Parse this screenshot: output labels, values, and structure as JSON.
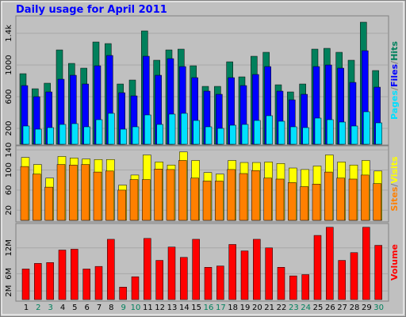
{
  "title": "Daily usage for April 2011",
  "chart_data": [
    {
      "type": "bar",
      "series": [
        {
          "name": "Hits",
          "color": "#00805c",
          "values": [
            890,
            700,
            770,
            1190,
            1020,
            960,
            1290,
            1270,
            760,
            810,
            1430,
            1060,
            1190,
            1200,
            990,
            730,
            730,
            1040,
            850,
            1110,
            1160,
            750,
            660,
            760,
            1200,
            1210,
            1160,
            1060,
            1540,
            930
          ]
        },
        {
          "name": "Files",
          "color": "#0000ff",
          "values": [
            740,
            600,
            660,
            820,
            870,
            760,
            990,
            1120,
            650,
            610,
            1110,
            870,
            1080,
            980,
            840,
            670,
            630,
            840,
            740,
            880,
            980,
            670,
            560,
            630,
            980,
            1000,
            960,
            780,
            1180,
            720
          ]
        },
        {
          "name": "Pages",
          "color": "#00e0ff",
          "values": [
            230,
            190,
            210,
            250,
            260,
            220,
            310,
            390,
            190,
            220,
            370,
            250,
            380,
            390,
            300,
            220,
            200,
            240,
            250,
            300,
            360,
            290,
            220,
            210,
            330,
            310,
            280,
            230,
            410,
            270
          ]
        }
      ],
      "legend_separator": "/",
      "ylim": [
        0,
        1600
      ],
      "yticks": [
        200,
        600,
        1000,
        {
          "value": 1400,
          "label": "1.4k"
        }
      ],
      "grid": true
    },
    {
      "type": "bar",
      "series": [
        {
          "name": "Visits",
          "color": "#ffff00",
          "values": [
            125,
            111,
            84,
            127,
            124,
            122,
            121,
            121,
            70,
            90,
            130,
            116,
            110,
            136,
            119,
            95,
            92,
            119,
            115,
            115,
            116,
            113,
            104,
            101,
            108,
            130,
            116,
            110,
            119,
            98
          ]
        },
        {
          "name": "Sites",
          "color": "#ff8000",
          "values": [
            107,
            92,
            66,
            111,
            110,
            111,
            96,
            98,
            60,
            81,
            81,
            102,
            101,
            119,
            84,
            78,
            78,
            101,
            93,
            99,
            84,
            82,
            75,
            67,
            72,
            96,
            84,
            82,
            90,
            73
          ]
        }
      ],
      "legend_separator": "/",
      "ylim": [
        0,
        145
      ],
      "yticks": [
        20,
        60,
        100,
        140
      ],
      "grid": true
    },
    {
      "type": "bar",
      "categories": [
        "1",
        "2",
        "3",
        "4",
        "5",
        "6",
        "7",
        "8",
        "9",
        "10",
        "11",
        "12",
        "13",
        "14",
        "15",
        "16",
        "17",
        "18",
        "19",
        "20",
        "21",
        "22",
        "23",
        "24",
        "25",
        "26",
        "27",
        "28",
        "29",
        "30"
      ],
      "category_colors": [
        "#000000",
        "#00805c",
        "#00805c",
        "#000000",
        "#000000",
        "#000000",
        "#000000",
        "#000000",
        "#00805c",
        "#00805c",
        "#000000",
        "#000000",
        "#000000",
        "#000000",
        "#000000",
        "#00805c",
        "#00805c",
        "#000000",
        "#000000",
        "#000000",
        "#000000",
        "#000000",
        "#00805c",
        "#00805c",
        "#000000",
        "#000000",
        "#000000",
        "#000000",
        "#000000",
        "#00805c"
      ],
      "series": [
        {
          "name": "Volume",
          "color": "#ff0000",
          "values": [
            7.1,
            8.4,
            8.6,
            11.5,
            11.7,
            7.1,
            7.7,
            14.0,
            2.9,
            5.3,
            14.2,
            9.1,
            12.2,
            9.8,
            14.0,
            7.5,
            7.8,
            12.8,
            11.3,
            14.0,
            12.0,
            7.5,
            5.5,
            5.8,
            14.9,
            16.8,
            9.1,
            10.9,
            16.8,
            12.6
          ]
        }
      ],
      "ylim": [
        0,
        17.3
      ],
      "yticks": [
        {
          "value": 2,
          "label": "2M"
        },
        {
          "value": 6,
          "label": "6M"
        },
        {
          "value": 12,
          "label": "12M"
        }
      ],
      "grid": true
    }
  ]
}
